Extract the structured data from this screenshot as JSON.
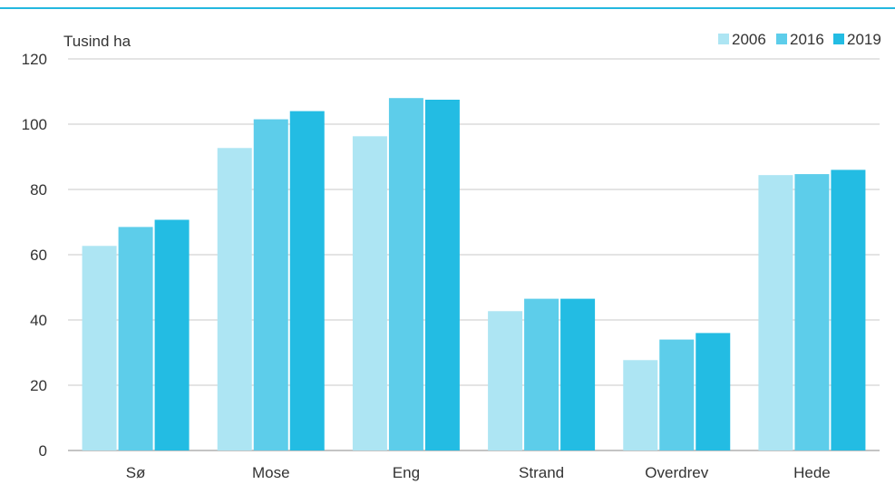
{
  "chart_data": {
    "type": "bar",
    "unit_label": "Tusind ha",
    "categories": [
      "Sø",
      "Mose",
      "Eng",
      "Strand",
      "Overdrev",
      "Hede"
    ],
    "series": [
      {
        "name": "2006",
        "color": "#ade5f3",
        "values": [
          62.7,
          92.7,
          96.3,
          42.7,
          27.7,
          84.4
        ]
      },
      {
        "name": "2016",
        "color": "#5dcdea",
        "values": [
          68.5,
          101.5,
          108.0,
          46.5,
          34.0,
          84.7
        ]
      },
      {
        "name": "2019",
        "color": "#23bce3",
        "values": [
          70.7,
          104.0,
          107.5,
          46.5,
          36.0,
          86.0
        ]
      }
    ],
    "y_ticks": [
      "0",
      "20",
      "40",
      "60",
      "80",
      "100",
      "120"
    ],
    "ylim": [
      0,
      120
    ],
    "grid": true,
    "legend_position": "top-right"
  }
}
